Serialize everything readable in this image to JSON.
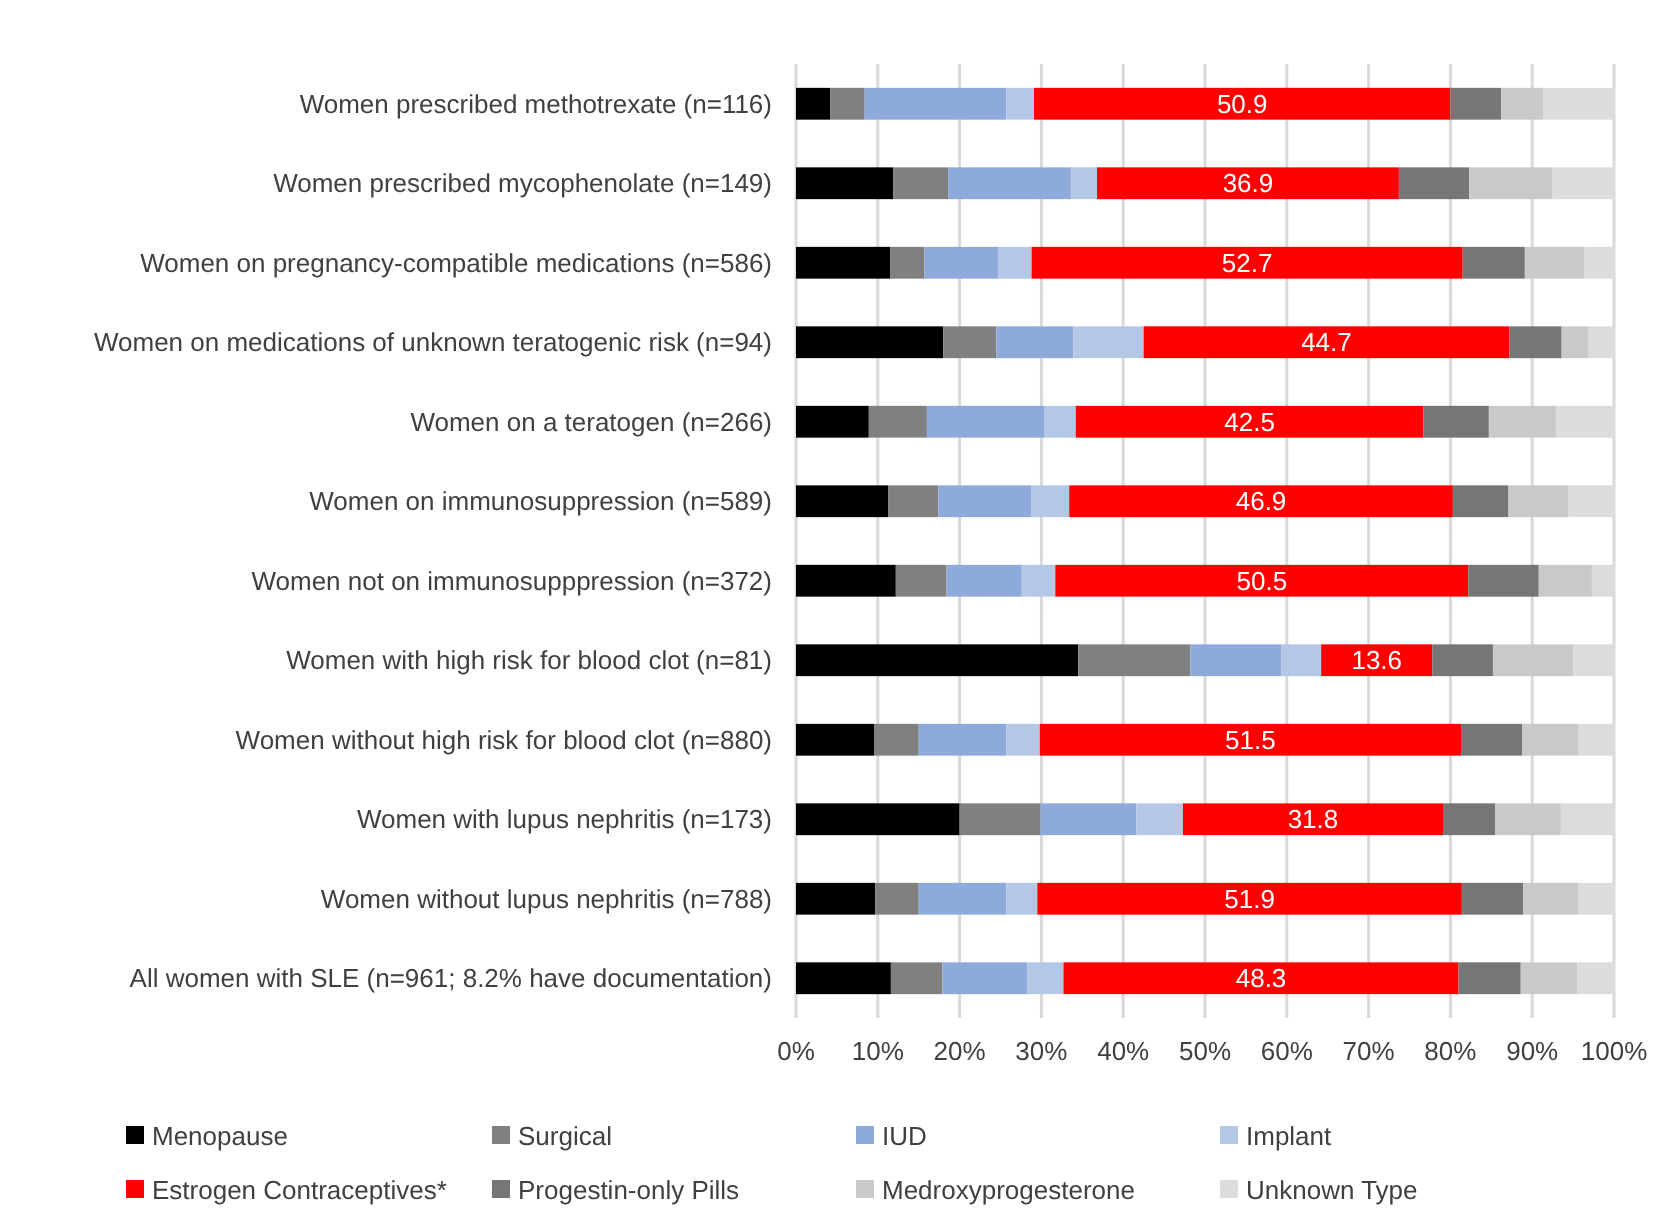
{
  "chart_data": {
    "type": "bar",
    "orientation": "horizontal",
    "stacked": true,
    "categories": [
      "Women prescribed methotrexate (n=116)",
      "Women prescribed mycophenolate (n=149)",
      "Women on pregnancy-compatible medications (n=586)",
      "Women on medications of unknown teratogenic risk (n=94)",
      "Women on a teratogen (n=266)",
      "Women on immunosuppression (n=589)",
      "Women not on immunosupppression (n=372)",
      "Women with high risk for blood clot (n=81)",
      "Women without high risk for blood clot (n=880)",
      "Women with lupus nephritis (n=173)",
      "Women without lupus nephritis (n=788)",
      "All women with SLE (n=961; 8.2% have documentation)"
    ],
    "series": [
      {
        "name": "Menopause",
        "color": "#000000",
        "values": [
          4.2,
          11.9,
          11.5,
          18.0,
          8.9,
          11.3,
          12.2,
          34.5,
          9.6,
          20.0,
          9.7,
          11.6
        ]
      },
      {
        "name": "Surgical",
        "color": "#808080",
        "values": [
          4.2,
          6.7,
          4.2,
          6.5,
          7.1,
          6.1,
          6.2,
          13.7,
          5.4,
          9.9,
          5.3,
          6.3
        ]
      },
      {
        "name": "IUD",
        "color": "#8eaadb",
        "values": [
          17.3,
          15.0,
          9.0,
          9.4,
          14.4,
          11.4,
          9.2,
          11.1,
          10.7,
          11.7,
          10.7,
          10.4
        ]
      },
      {
        "name": "Implant",
        "color": "#b4c7e7",
        "values": [
          3.4,
          3.2,
          4.1,
          8.6,
          3.8,
          4.6,
          4.1,
          4.9,
          4.1,
          5.7,
          3.8,
          4.4
        ]
      },
      {
        "name": "Estrogen Contraceptives*",
        "color": "#ff0000",
        "values": [
          50.9,
          36.9,
          52.7,
          44.7,
          42.5,
          46.9,
          50.5,
          13.6,
          51.5,
          31.8,
          51.9,
          48.3
        ],
        "value_labels": [
          "50.9",
          "36.9",
          "52.7",
          "44.7",
          "42.5",
          "46.9",
          "50.5",
          "13.6",
          "51.5",
          "31.8",
          "51.9",
          "48.3"
        ]
      },
      {
        "name": "Progestin-only Pills",
        "color": "#767676",
        "values": [
          6.2,
          8.6,
          7.6,
          6.4,
          8.0,
          6.8,
          8.6,
          7.4,
          7.5,
          6.4,
          7.5,
          7.6
        ]
      },
      {
        "name": "Medroxyprogesterone",
        "color": "#c9c9c9",
        "values": [
          5.2,
          10.2,
          7.3,
          3.3,
          8.2,
          7.3,
          6.5,
          9.8,
          6.8,
          8.0,
          6.7,
          6.9
        ]
      },
      {
        "name": "Unknown Type",
        "color": "#dcdcdc",
        "values": [
          8.6,
          7.5,
          3.6,
          3.1,
          7.1,
          5.6,
          2.7,
          5.0,
          4.4,
          6.5,
          4.4,
          4.5
        ]
      }
    ],
    "xlim": [
      0,
      100
    ],
    "xticks": [
      {
        "value": 0,
        "label": "0%"
      },
      {
        "value": 10,
        "label": "10%"
      },
      {
        "value": 20,
        "label": "20%"
      },
      {
        "value": 30,
        "label": "30%"
      },
      {
        "value": 40,
        "label": "40%"
      },
      {
        "value": 50,
        "label": "50%"
      },
      {
        "value": 60,
        "label": "60%"
      },
      {
        "value": 70,
        "label": "70%"
      },
      {
        "value": 80,
        "label": "80%"
      },
      {
        "value": 90,
        "label": "90%"
      },
      {
        "value": 100,
        "label": "100%"
      }
    ],
    "grid": "x",
    "legend": "bottom"
  }
}
